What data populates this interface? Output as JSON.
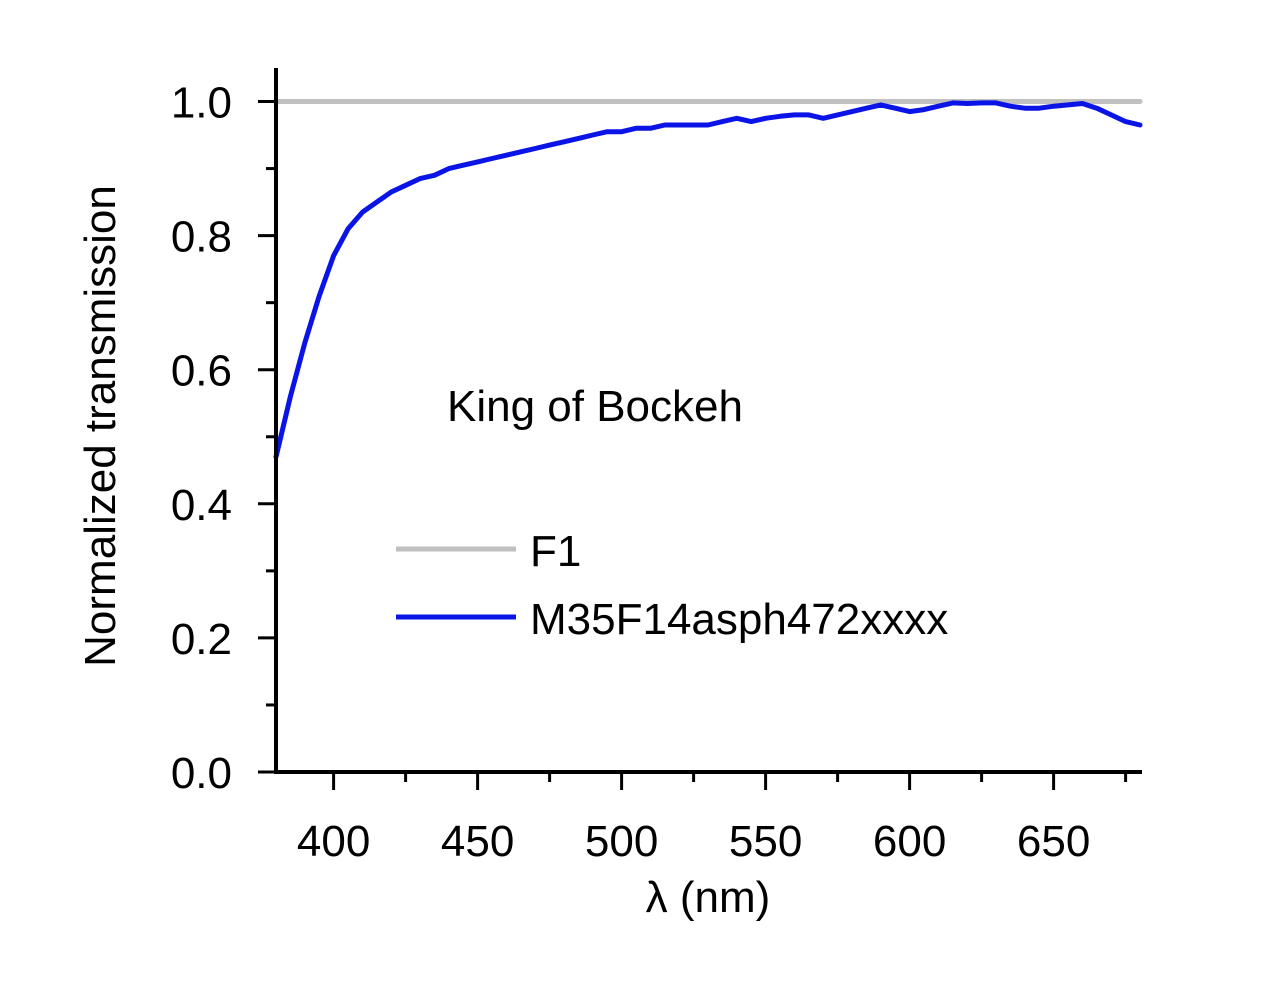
{
  "chart_data": {
    "type": "line",
    "annotation": "King of Bockeh",
    "xlabel": "λ (nm)",
    "ylabel": "Normalized transmission",
    "xlim": [
      380,
      680
    ],
    "ylim": [
      0.0,
      1.05
    ],
    "x_ticks": [
      400,
      450,
      500,
      550,
      600,
      650
    ],
    "x_tick_labels": [
      "400",
      "450",
      "500",
      "550",
      "600",
      "650"
    ],
    "y_ticks": [
      0.0,
      0.2,
      0.4,
      0.6,
      0.8,
      1.0
    ],
    "y_tick_labels": [
      "0.0",
      "0.2",
      "0.4",
      "0.6",
      "0.8",
      "1.0"
    ],
    "grid": false,
    "legend_position": "center",
    "series": [
      {
        "name": "F1",
        "color": "#c0c0c0",
        "x": [
          380,
          680
        ],
        "y": [
          1.0,
          1.0
        ]
      },
      {
        "name": "M35F14asph472xxxx",
        "color": "#0a14e6",
        "x": [
          380,
          385,
          390,
          395,
          400,
          405,
          410,
          415,
          420,
          425,
          430,
          435,
          440,
          445,
          450,
          455,
          460,
          465,
          470,
          475,
          480,
          485,
          490,
          495,
          500,
          505,
          510,
          515,
          520,
          525,
          530,
          535,
          540,
          545,
          550,
          555,
          560,
          565,
          570,
          575,
          580,
          585,
          590,
          595,
          600,
          605,
          610,
          615,
          620,
          625,
          630,
          635,
          640,
          645,
          650,
          655,
          660,
          665,
          670,
          675,
          680
        ],
        "y": [
          0.47,
          0.56,
          0.64,
          0.71,
          0.77,
          0.81,
          0.835,
          0.85,
          0.865,
          0.875,
          0.885,
          0.89,
          0.9,
          0.905,
          0.91,
          0.915,
          0.92,
          0.925,
          0.93,
          0.935,
          0.94,
          0.945,
          0.95,
          0.955,
          0.955,
          0.96,
          0.96,
          0.965,
          0.965,
          0.965,
          0.965,
          0.97,
          0.975,
          0.97,
          0.975,
          0.978,
          0.98,
          0.98,
          0.975,
          0.98,
          0.985,
          0.99,
          0.995,
          0.99,
          0.985,
          0.988,
          0.993,
          0.998,
          0.997,
          0.998,
          0.998,
          0.993,
          0.99,
          0.99,
          0.993,
          0.995,
          0.997,
          0.99,
          0.98,
          0.97,
          0.965
        ]
      }
    ]
  }
}
